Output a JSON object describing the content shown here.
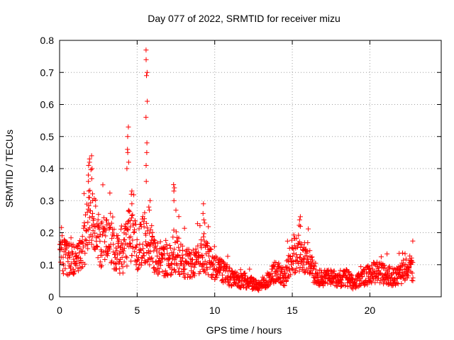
{
  "chart_data": {
    "type": "scatter",
    "title": "Day 077 of 2022, SRMTID for receiver mizu",
    "xlabel": "GPS time / hours",
    "ylabel": "SRMTID / TECUs",
    "xlim": [
      0,
      24.6
    ],
    "ylim": [
      0,
      0.8
    ],
    "xticks": [
      0,
      5,
      10,
      15,
      20
    ],
    "yticks": [
      0,
      0.1,
      0.2,
      0.3,
      0.4,
      0.5,
      0.6,
      0.7,
      0.8
    ],
    "grid": true,
    "marker": "+",
    "color": "#ff0000",
    "trend": [
      [
        0.0,
        0.14
      ],
      [
        0.5,
        0.12
      ],
      [
        1.0,
        0.11
      ],
      [
        1.5,
        0.15
      ],
      [
        1.8,
        0.2
      ],
      [
        2.0,
        0.3
      ],
      [
        2.3,
        0.2
      ],
      [
        2.7,
        0.16
      ],
      [
        3.2,
        0.17
      ],
      [
        3.6,
        0.14
      ],
      [
        4.0,
        0.12
      ],
      [
        4.5,
        0.2
      ],
      [
        5.0,
        0.15
      ],
      [
        5.6,
        0.2
      ],
      [
        6.0,
        0.14
      ],
      [
        6.5,
        0.12
      ],
      [
        7.0,
        0.11
      ],
      [
        7.5,
        0.14
      ],
      [
        8.0,
        0.11
      ],
      [
        8.5,
        0.1
      ],
      [
        9.3,
        0.13
      ],
      [
        10.0,
        0.09
      ],
      [
        10.5,
        0.08
      ],
      [
        11.0,
        0.06
      ],
      [
        11.5,
        0.05
      ],
      [
        12.0,
        0.05
      ],
      [
        12.5,
        0.04
      ],
      [
        13.0,
        0.03
      ],
      [
        13.5,
        0.06
      ],
      [
        14.0,
        0.08
      ],
      [
        14.5,
        0.06
      ],
      [
        15.0,
        0.14
      ],
      [
        15.5,
        0.12
      ],
      [
        16.0,
        0.12
      ],
      [
        16.5,
        0.06
      ],
      [
        17.0,
        0.06
      ],
      [
        17.5,
        0.06
      ],
      [
        18.0,
        0.05
      ],
      [
        18.5,
        0.06
      ],
      [
        19.0,
        0.04
      ],
      [
        19.5,
        0.06
      ],
      [
        20.0,
        0.07
      ],
      [
        20.5,
        0.08
      ],
      [
        21.0,
        0.07
      ],
      [
        21.5,
        0.06
      ],
      [
        22.0,
        0.07
      ],
      [
        22.4,
        0.09
      ],
      [
        22.8,
        0.09
      ]
    ],
    "peaks": [
      {
        "x": 1.9,
        "values": [
          0.36,
          0.38,
          0.41,
          0.43,
          0.42,
          0.33,
          0.31
        ]
      },
      {
        "x": 2.1,
        "values": [
          0.44,
          0.4,
          0.3,
          0.26
        ]
      },
      {
        "x": 4.4,
        "values": [
          0.53,
          0.5,
          0.46,
          0.45,
          0.42,
          0.4
        ]
      },
      {
        "x": 4.65,
        "values": [
          0.33,
          0.32,
          0.29
        ]
      },
      {
        "x": 5.6,
        "values": [
          0.77,
          0.74,
          0.7,
          0.69,
          0.61,
          0.56,
          0.48,
          0.45,
          0.41,
          0.36
        ]
      },
      {
        "x": 5.8,
        "values": [
          0.3,
          0.28,
          0.27
        ]
      },
      {
        "x": 7.4,
        "values": [
          0.35,
          0.34,
          0.33,
          0.3
        ]
      },
      {
        "x": 9.3,
        "values": [
          0.29,
          0.26,
          0.24,
          0.23
        ]
      },
      {
        "x": 15.5,
        "values": [
          0.25,
          0.24,
          0.22
        ]
      }
    ]
  }
}
